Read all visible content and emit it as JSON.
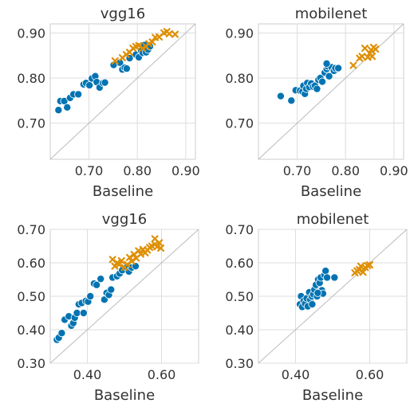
{
  "colors": {
    "blue": "#0173b2",
    "orange": "#de8f05"
  },
  "chart_data": [
    {
      "type": "scatter",
      "title": "vgg16",
      "xlabel": "Baseline",
      "xlim": [
        0.62,
        0.92
      ],
      "ylim": [
        0.62,
        0.92
      ],
      "xticks": [
        0.7,
        0.8,
        0.9
      ],
      "yticks": [
        0.7,
        0.8,
        0.9
      ],
      "xticklabels": [
        "0.70",
        "0.80",
        "0.90"
      ],
      "yticklabels": [
        "0.70",
        "0.80",
        "0.90"
      ],
      "grid": true,
      "series": [
        {
          "marker": "circle",
          "color": "#0173b2",
          "points": [
            [
              0.637,
              0.729
            ],
            [
              0.641,
              0.749
            ],
            [
              0.649,
              0.749
            ],
            [
              0.655,
              0.735
            ],
            [
              0.661,
              0.756
            ],
            [
              0.668,
              0.764
            ],
            [
              0.678,
              0.764
            ],
            [
              0.689,
              0.786
            ],
            [
              0.694,
              0.789
            ],
            [
              0.701,
              0.784
            ],
            [
              0.706,
              0.799
            ],
            [
              0.713,
              0.804
            ],
            [
              0.716,
              0.791
            ],
            [
              0.722,
              0.779
            ],
            [
              0.729,
              0.789
            ],
            [
              0.733,
              0.79
            ],
            [
              0.751,
              0.829
            ],
            [
              0.764,
              0.834
            ],
            [
              0.769,
              0.819
            ],
            [
              0.774,
              0.823
            ],
            [
              0.778,
              0.821
            ],
            [
              0.784,
              0.844
            ],
            [
              0.797,
              0.852
            ],
            [
              0.803,
              0.846
            ],
            [
              0.808,
              0.86
            ],
            [
              0.811,
              0.856
            ],
            [
              0.815,
              0.873
            ],
            [
              0.818,
              0.857
            ],
            [
              0.822,
              0.863
            ],
            [
              0.826,
              0.87
            ]
          ]
        },
        {
          "marker": "x",
          "color": "#de8f05",
          "points": [
            [
              0.754,
              0.838
            ],
            [
              0.769,
              0.845
            ],
            [
              0.777,
              0.852
            ],
            [
              0.784,
              0.857
            ],
            [
              0.791,
              0.866
            ],
            [
              0.797,
              0.87
            ],
            [
              0.803,
              0.872
            ],
            [
              0.811,
              0.866
            ],
            [
              0.818,
              0.87
            ],
            [
              0.824,
              0.876
            ],
            [
              0.831,
              0.88
            ],
            [
              0.837,
              0.89
            ],
            [
              0.845,
              0.891
            ],
            [
              0.855,
              0.9
            ],
            [
              0.861,
              0.903
            ],
            [
              0.866,
              0.898
            ],
            [
              0.878,
              0.897
            ]
          ]
        }
      ]
    },
    {
      "type": "scatter",
      "title": "mobilenet",
      "xlabel": "Baseline",
      "xlim": [
        0.62,
        0.92
      ],
      "ylim": [
        0.62,
        0.92
      ],
      "xticks": [
        0.7,
        0.8,
        0.9
      ],
      "yticks": [
        0.7,
        0.8,
        0.9
      ],
      "xticklabels": [
        "0.70",
        "0.80",
        "0.90"
      ],
      "yticklabels": [
        "0.70",
        "0.80",
        "0.90"
      ],
      "grid": true,
      "series": [
        {
          "marker": "circle",
          "color": "#0173b2",
          "points": [
            [
              0.666,
              0.76
            ],
            [
              0.688,
              0.75
            ],
            [
              0.697,
              0.773
            ],
            [
              0.706,
              0.772
            ],
            [
              0.711,
              0.77
            ],
            [
              0.713,
              0.783
            ],
            [
              0.716,
              0.765
            ],
            [
              0.719,
              0.776
            ],
            [
              0.721,
              0.789
            ],
            [
              0.725,
              0.78
            ],
            [
              0.729,
              0.788
            ],
            [
              0.733,
              0.781
            ],
            [
              0.737,
              0.783
            ],
            [
              0.741,
              0.776
            ],
            [
              0.744,
              0.796
            ],
            [
              0.748,
              0.8
            ],
            [
              0.752,
              0.792
            ],
            [
              0.757,
              0.812
            ],
            [
              0.761,
              0.82
            ],
            [
              0.763,
              0.826
            ],
            [
              0.766,
              0.804
            ],
            [
              0.771,
              0.824
            ],
            [
              0.776,
              0.816
            ],
            [
              0.779,
              0.822
            ],
            [
              0.761,
              0.832
            ],
            [
              0.785,
              0.822
            ]
          ]
        },
        {
          "marker": "x",
          "color": "#de8f05",
          "points": [
            [
              0.816,
              0.828
            ],
            [
              0.829,
              0.844
            ],
            [
              0.834,
              0.848
            ],
            [
              0.84,
              0.866
            ],
            [
              0.846,
              0.846
            ],
            [
              0.85,
              0.855
            ],
            [
              0.853,
              0.862
            ],
            [
              0.858,
              0.868
            ],
            [
              0.855,
              0.848
            ],
            [
              0.862,
              0.864
            ]
          ]
        }
      ]
    },
    {
      "type": "scatter",
      "title": "vgg16",
      "xlabel": "Baseline",
      "xlim": [
        0.3,
        0.7
      ],
      "ylim": [
        0.3,
        0.7
      ],
      "xticks": [
        0.4,
        0.6
      ],
      "yticks": [
        0.3,
        0.4,
        0.5,
        0.6,
        0.7
      ],
      "xticklabels": [
        "0.40",
        "0.60"
      ],
      "yticklabels": [
        "0.30",
        "0.40",
        "0.50",
        "0.60",
        "0.70"
      ],
      "grid": true,
      "series": [
        {
          "marker": "circle",
          "color": "#0173b2",
          "points": [
            [
              0.318,
              0.37
            ],
            [
              0.323,
              0.376
            ],
            [
              0.331,
              0.39
            ],
            [
              0.339,
              0.43
            ],
            [
              0.35,
              0.44
            ],
            [
              0.357,
              0.412
            ],
            [
              0.362,
              0.42
            ],
            [
              0.366,
              0.436
            ],
            [
              0.372,
              0.45
            ],
            [
              0.377,
              0.476
            ],
            [
              0.385,
              0.48
            ],
            [
              0.39,
              0.45
            ],
            [
              0.396,
              0.486
            ],
            [
              0.402,
              0.484
            ],
            [
              0.408,
              0.5
            ],
            [
              0.418,
              0.538
            ],
            [
              0.425,
              0.534
            ],
            [
              0.436,
              0.552
            ],
            [
              0.446,
              0.49
            ],
            [
              0.452,
              0.51
            ],
            [
              0.458,
              0.504
            ],
            [
              0.464,
              0.52
            ],
            [
              0.468,
              0.556
            ],
            [
              0.48,
              0.56
            ],
            [
              0.487,
              0.568
            ],
            [
              0.494,
              0.578
            ],
            [
              0.506,
              0.586
            ],
            [
              0.512,
              0.574
            ],
            [
              0.52,
              0.586
            ],
            [
              0.53,
              0.59
            ]
          ]
        },
        {
          "marker": "x",
          "color": "#de8f05",
          "points": [
            [
              0.468,
              0.61
            ],
            [
              0.474,
              0.59
            ],
            [
              0.48,
              0.6
            ],
            [
              0.486,
              0.595
            ],
            [
              0.492,
              0.606
            ],
            [
              0.5,
              0.586
            ],
            [
              0.508,
              0.595
            ],
            [
              0.514,
              0.616
            ],
            [
              0.52,
              0.605
            ],
            [
              0.526,
              0.625
            ],
            [
              0.532,
              0.614
            ],
            [
              0.538,
              0.636
            ],
            [
              0.544,
              0.626
            ],
            [
              0.55,
              0.64
            ],
            [
              0.556,
              0.63
            ],
            [
              0.562,
              0.638
            ],
            [
              0.568,
              0.646
            ],
            [
              0.574,
              0.65
            ],
            [
              0.582,
              0.655
            ],
            [
              0.588,
              0.648
            ],
            [
              0.594,
              0.66
            ],
            [
              0.582,
              0.672
            ],
            [
              0.598,
              0.644
            ]
          ]
        }
      ]
    },
    {
      "type": "scatter",
      "title": "mobilenet",
      "xlabel": "Baseline",
      "xlim": [
        0.3,
        0.7
      ],
      "ylim": [
        0.3,
        0.7
      ],
      "xticks": [
        0.4,
        0.6
      ],
      "yticks": [
        0.3,
        0.4,
        0.5,
        0.6,
        0.7
      ],
      "xticklabels": [
        "0.40",
        "0.60"
      ],
      "yticklabels": [
        "0.30",
        "0.40",
        "0.50",
        "0.60",
        "0.70"
      ],
      "grid": true,
      "series": [
        {
          "marker": "circle",
          "color": "#0173b2",
          "points": [
            [
              0.412,
              0.476
            ],
            [
              0.415,
              0.5
            ],
            [
              0.418,
              0.468
            ],
            [
              0.422,
              0.486
            ],
            [
              0.426,
              0.478
            ],
            [
              0.43,
              0.494
            ],
            [
              0.433,
              0.47
            ],
            [
              0.437,
              0.512
            ],
            [
              0.44,
              0.49
            ],
            [
              0.444,
              0.5
            ],
            [
              0.448,
              0.506
            ],
            [
              0.451,
              0.52
            ],
            [
              0.455,
              0.534
            ],
            [
              0.458,
              0.5
            ],
            [
              0.461,
              0.55
            ],
            [
              0.465,
              0.54
            ],
            [
              0.468,
              0.556
            ],
            [
              0.471,
              0.518
            ],
            [
              0.474,
              0.508
            ],
            [
              0.478,
              0.564
            ],
            [
              0.481,
              0.576
            ],
            [
              0.485,
              0.556
            ],
            [
              0.46,
              0.51
            ],
            [
              0.505,
              0.556
            ],
            [
              0.445,
              0.476
            ]
          ]
        },
        {
          "marker": "x",
          "color": "#de8f05",
          "points": [
            [
              0.56,
              0.57
            ],
            [
              0.566,
              0.576
            ],
            [
              0.572,
              0.58
            ],
            [
              0.576,
              0.59
            ],
            [
              0.582,
              0.572
            ],
            [
              0.588,
              0.586
            ],
            [
              0.594,
              0.592
            ],
            [
              0.6,
              0.594
            ]
          ]
        }
      ]
    }
  ]
}
